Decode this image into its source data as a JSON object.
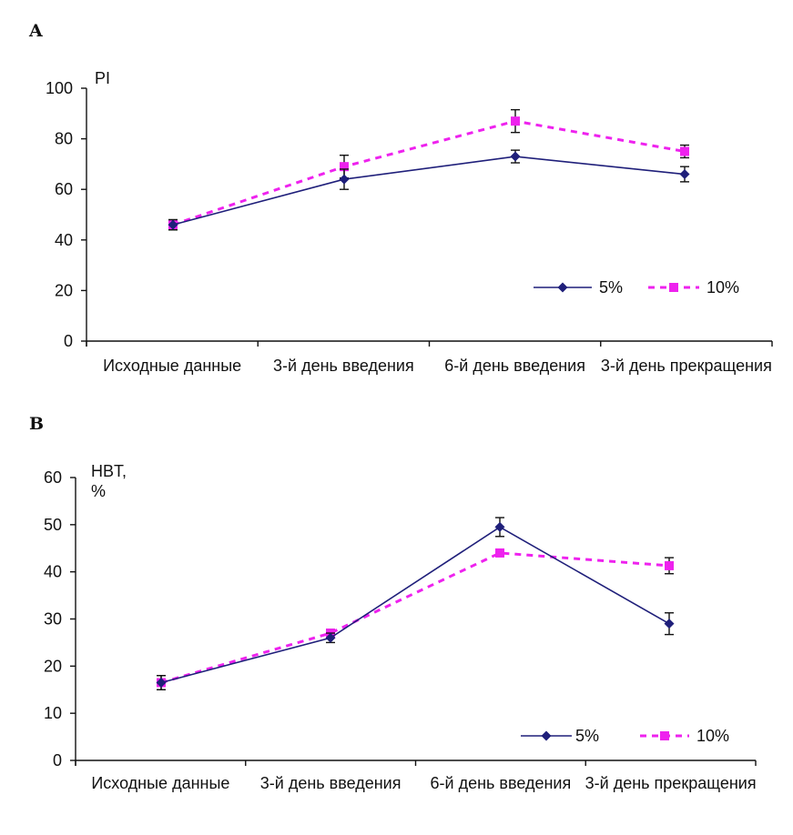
{
  "chart_data": [
    {
      "panel": "A",
      "type": "line",
      "ylabel_lines": [
        "PI"
      ],
      "ylim": [
        0,
        100
      ],
      "yticks": [
        0,
        20,
        40,
        60,
        80,
        100
      ],
      "categories": [
        "Исходные данные",
        "3-й день введения",
        "6-й день введения",
        "3-й день прекращения"
      ],
      "series": [
        {
          "name": "5%",
          "values": [
            46,
            64,
            73,
            66
          ],
          "errors": [
            2,
            4,
            2.5,
            3
          ],
          "color": "#1f1f7a",
          "style": "solid",
          "marker": "diamond"
        },
        {
          "name": "10%",
          "values": [
            46,
            69,
            87,
            75
          ],
          "errors": [
            2,
            4.5,
            4.5,
            2.5
          ],
          "color": "#ee22ee",
          "style": "dashed",
          "marker": "square"
        }
      ],
      "legend_position": "lower-right"
    },
    {
      "panel": "B",
      "type": "line",
      "ylabel_lines": [
        "HBT,",
        "%"
      ],
      "ylim": [
        0,
        60
      ],
      "yticks": [
        0,
        10,
        20,
        30,
        40,
        50,
        60
      ],
      "categories": [
        "Исходные данные",
        "3-й день введения",
        "6-й день введения",
        "3-й день прекращения"
      ],
      "series": [
        {
          "name": "5%",
          "values": [
            16.5,
            26,
            49.5,
            29
          ],
          "errors": [
            1.5,
            1,
            2,
            2.3
          ],
          "color": "#1f1f7a",
          "style": "solid",
          "marker": "diamond"
        },
        {
          "name": "10%",
          "values": [
            16.5,
            27,
            44,
            41.3
          ],
          "errors": [
            1.5,
            0.8,
            0.7,
            1.7
          ],
          "color": "#ee22ee",
          "style": "dashed",
          "marker": "square"
        }
      ],
      "legend_position": "lower-right"
    }
  ]
}
